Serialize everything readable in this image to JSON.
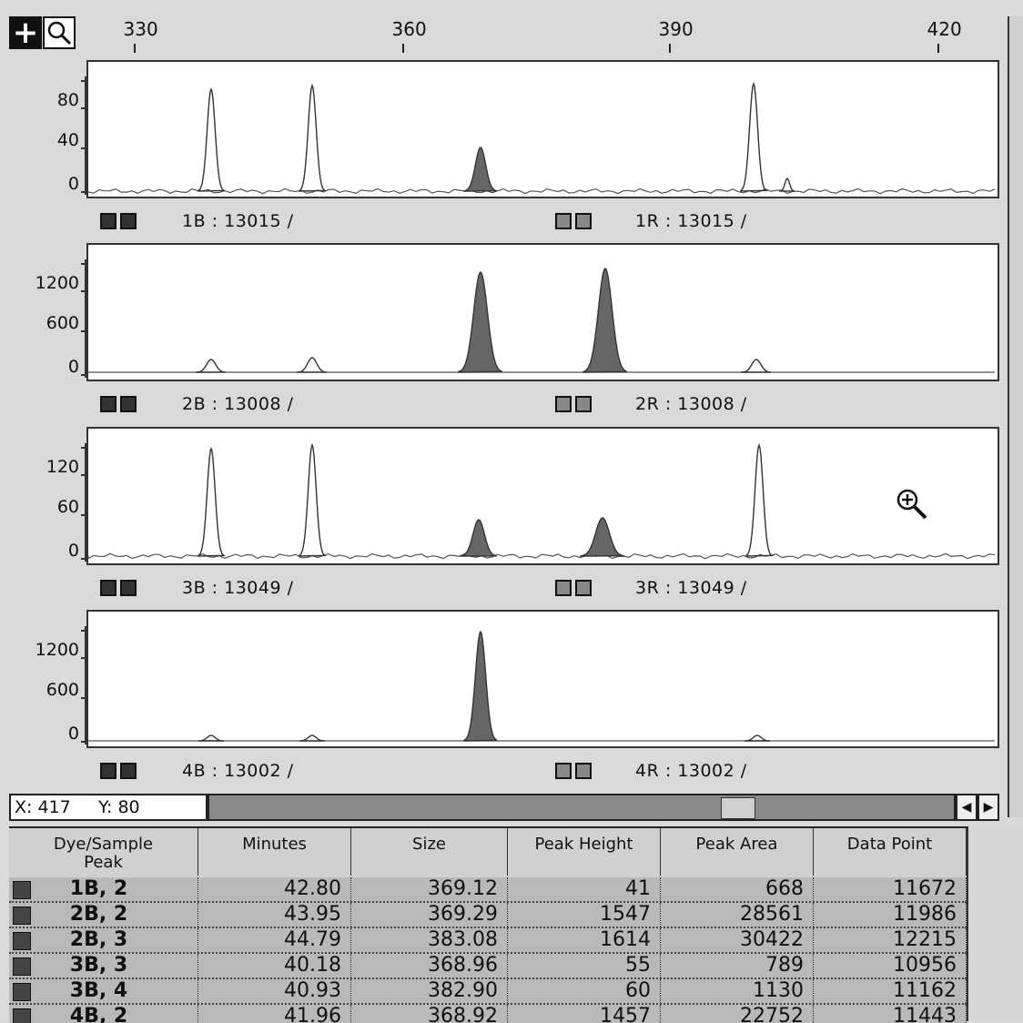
{
  "toolbar": {
    "plus_icon": "crosshair-plus-icon",
    "zoom_icon": "magnifier-icon"
  },
  "ruler": {
    "ticks": [
      "330",
      "360",
      "390",
      "420"
    ]
  },
  "panels": [
    {
      "ylabels": [
        "80",
        "40",
        "0"
      ],
      "blue_label": "1B : 13015 /",
      "red_label": "1R : 13015 /"
    },
    {
      "ylabels": [
        "1200",
        "600",
        "0"
      ],
      "blue_label": "2B : 13008 /",
      "red_label": "2R : 13008 /"
    },
    {
      "ylabels": [
        "120",
        "60",
        "0"
      ],
      "blue_label": "3B : 13049 /",
      "red_label": "3R : 13049 /"
    },
    {
      "ylabels": [
        "1200",
        "600",
        "0"
      ],
      "blue_label": "4B : 13002 /",
      "red_label": "4R : 13002 /"
    }
  ],
  "readout": {
    "x_label": "X: 417",
    "y_label": "Y: 80"
  },
  "table": {
    "headers": [
      "Dye/Sample Peak",
      "Minutes",
      "Size",
      "Peak Height",
      "Peak Area",
      "Data Point"
    ],
    "rows": [
      [
        "1B, 2",
        "42.80",
        "369.12",
        "41",
        "668",
        "11672"
      ],
      [
        "2B, 2",
        "43.95",
        "369.29",
        "1547",
        "28561",
        "11986"
      ],
      [
        "2B, 3",
        "44.79",
        "383.08",
        "1614",
        "30422",
        "12215"
      ],
      [
        "3B, 3",
        "40.18",
        "368.96",
        "55",
        "789",
        "10956"
      ],
      [
        "3B, 4",
        "40.93",
        "382.90",
        "60",
        "1130",
        "11162"
      ],
      [
        "4B, 2",
        "41.96",
        "368.92",
        "1457",
        "22752",
        "11443"
      ]
    ]
  }
}
